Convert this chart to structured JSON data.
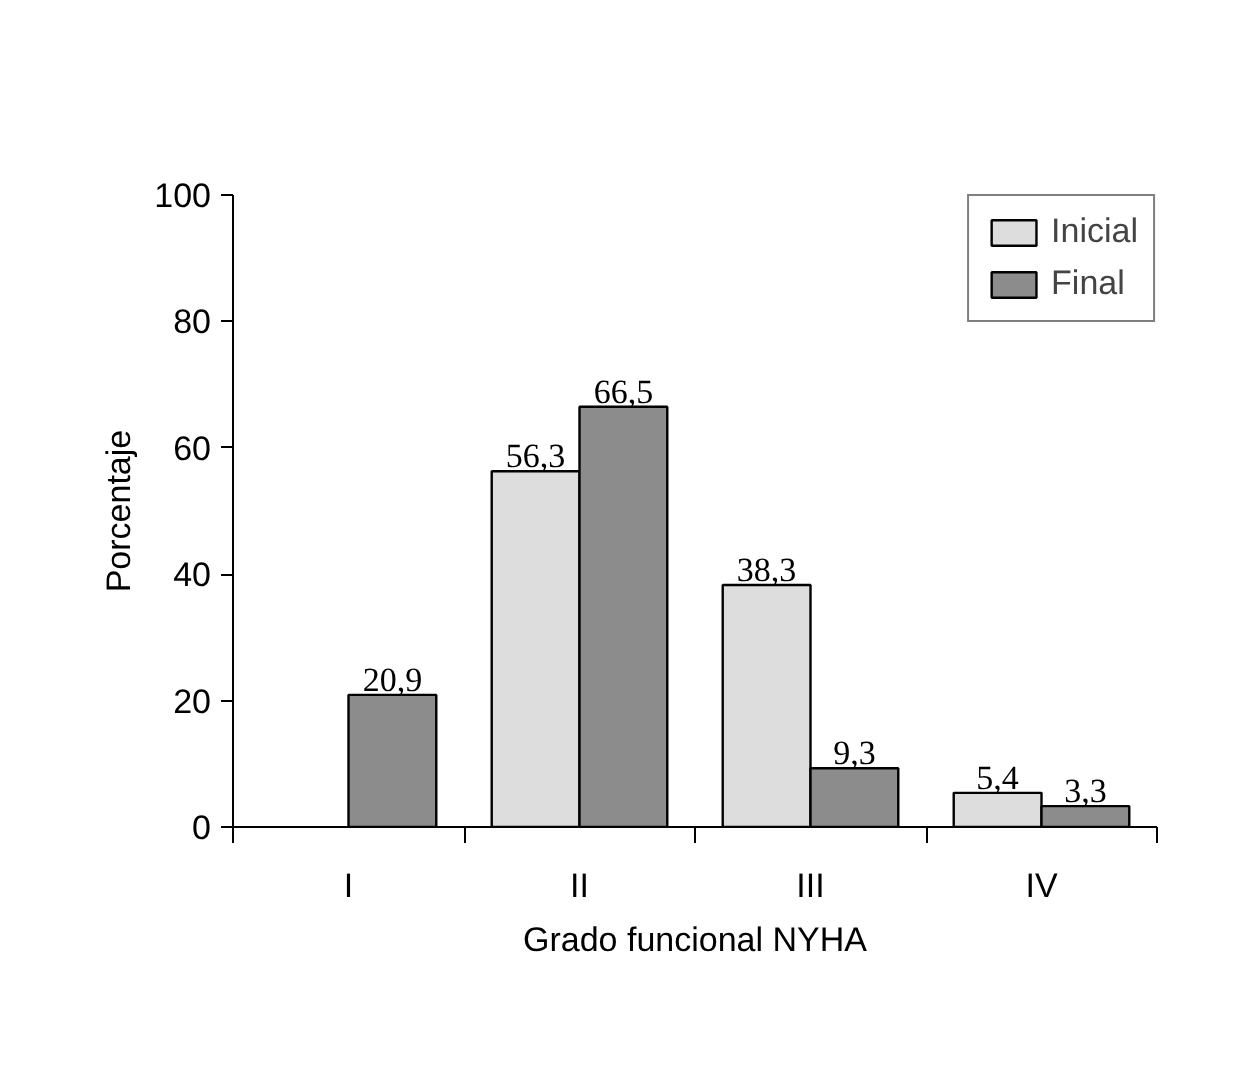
{
  "chart_data": {
    "type": "bar",
    "xlabel": "Grado funcional NYHA",
    "ylabel": "Porcentaje",
    "categories": [
      "I",
      "II",
      "III",
      "IV"
    ],
    "series": [
      {
        "name": "Inicial",
        "color": "#dddddd",
        "values": [
          null,
          56.3,
          38.3,
          5.4
        ],
        "value_labels": [
          null,
          "56,3",
          "38,3",
          "5,4"
        ]
      },
      {
        "name": "Final",
        "color": "#8c8c8c",
        "values": [
          20.9,
          66.5,
          9.3,
          3.3
        ],
        "value_labels": [
          "20,9",
          "66,5",
          "9,3",
          "3,3"
        ]
      }
    ],
    "ylim": [
      0,
      100
    ],
    "yticks": [
      0,
      20,
      40,
      60,
      80,
      100
    ],
    "grid": false,
    "legend": "top right"
  }
}
